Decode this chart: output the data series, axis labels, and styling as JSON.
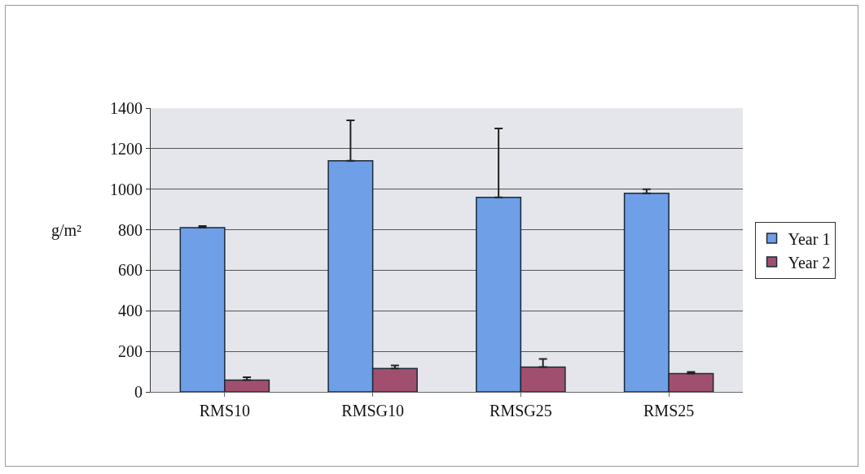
{
  "chart_data": {
    "type": "bar",
    "ylabel": "g/m²",
    "categories": [
      "RMS10",
      "RMSG10",
      "RMSG25",
      "RMS25"
    ],
    "series": [
      {
        "name": "Year 1",
        "color": "#6f9fe6",
        "values": [
          810,
          1140,
          960,
          980
        ],
        "errors": [
          [
            810,
            818
          ],
          [
            1140,
            1340
          ],
          [
            960,
            1300
          ],
          [
            980,
            1000
          ]
        ]
      },
      {
        "name": "Year 2",
        "color": "#a0506e",
        "values": [
          58,
          115,
          122,
          90
        ],
        "errors": [
          [
            58,
            72
          ],
          [
            115,
            130
          ],
          [
            122,
            162
          ],
          [
            90,
            98
          ]
        ]
      }
    ],
    "ylim": [
      0,
      1400
    ],
    "yticks": [
      0,
      200,
      400,
      600,
      800,
      1000,
      1200,
      1400
    ],
    "grid": "y",
    "legend": "right"
  }
}
